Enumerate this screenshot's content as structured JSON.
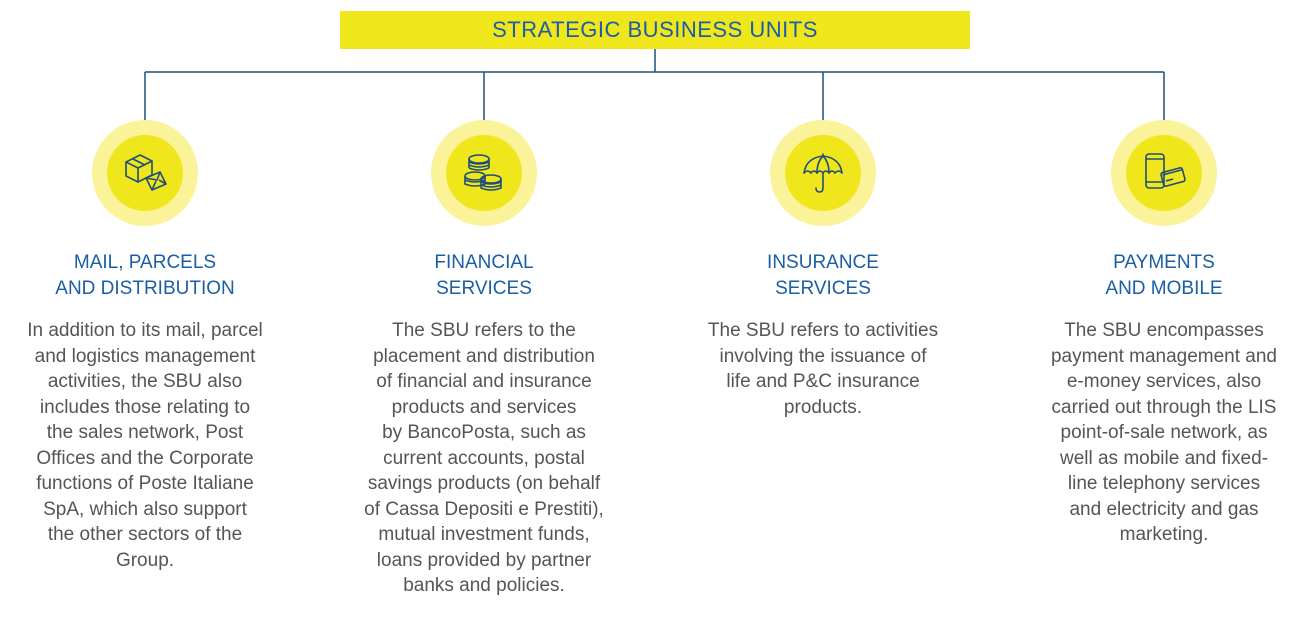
{
  "header": {
    "title": "STRATEGIC BUSINESS UNITS"
  },
  "colors": {
    "accent": "#f0e61c",
    "accent_light": "#faf39a",
    "title": "#1a5ea6",
    "line": "#1f4e79",
    "text": "#555555"
  },
  "units": [
    {
      "icon": "parcel-mail-icon",
      "title": "MAIL, PARCELS\nAND DISTRIBUTION",
      "description": "In addition to its mail, parcel\nand logistics management\nactivities, the SBU also\nincludes those relating to\nthe sales network, Post\nOffices and the Corporate\nfunctions of Poste Italiane\nSpA, which also support\nthe other sectors of the\nGroup."
    },
    {
      "icon": "coins-icon",
      "title": "FINANCIAL\nSERVICES",
      "description": "The SBU refers to the\nplacement and distribution\nof financial and insurance\nproducts and services\nby BancoPosta, such as\ncurrent accounts, postal\nsavings products (on behalf\nof Cassa Depositi e Prestiti),\nmutual investment funds,\nloans provided by partner\nbanks and policies."
    },
    {
      "icon": "umbrella-icon",
      "title": "INSURANCE\nSERVICES",
      "description": "The SBU refers to activities\ninvolving the issuance of\nlife and P&C insurance\nproducts."
    },
    {
      "icon": "phone-card-icon",
      "title": "PAYMENTS\nAND MOBILE",
      "description": "The SBU encompasses\npayment management and\ne-money services, also\ncarried out through the LIS\npoint-of-sale network, as\nwell as mobile and fixed-\nline telephony services\nand electricity and gas\nmarketing."
    }
  ]
}
